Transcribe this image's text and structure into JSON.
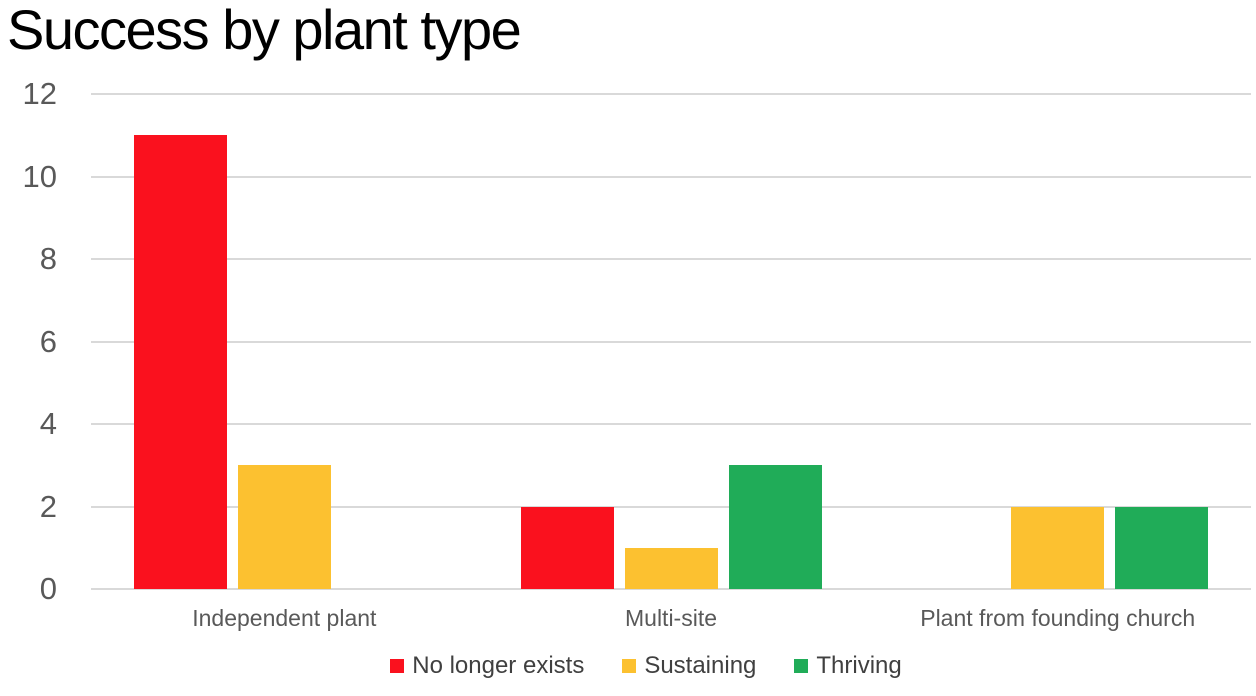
{
  "chart_data": {
    "type": "bar",
    "title": "Success by plant type",
    "categories": [
      "Independent plant",
      "Multi-site",
      "Plant from founding church"
    ],
    "series": [
      {
        "name": "No longer exists",
        "color": "#FA111E",
        "values": [
          11,
          2,
          0
        ]
      },
      {
        "name": "Sustaining",
        "color": "#FCC130",
        "values": [
          3,
          1,
          2
        ]
      },
      {
        "name": "Thriving",
        "color": "#20AC58",
        "values": [
          0,
          3,
          2
        ]
      }
    ],
    "xlabel": "",
    "ylabel": "",
    "ylim": [
      0,
      12
    ],
    "yticks": [
      0,
      2,
      4,
      6,
      8,
      10,
      12
    ],
    "grid": "horizontal",
    "legend_position": "bottom"
  },
  "colors": {
    "title": "#000000",
    "tick_label": "#595959",
    "category_label": "#595959",
    "legend_label": "#404040",
    "gridline": "#D9D9D9",
    "background": "#FFFFFF"
  }
}
